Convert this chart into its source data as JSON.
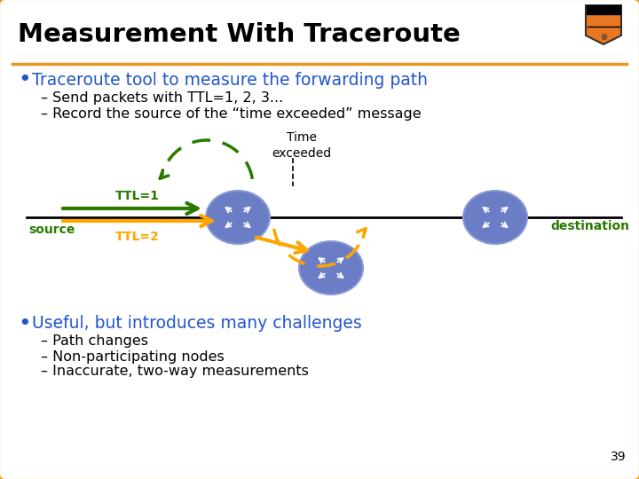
{
  "title": "Measurement With Traceroute",
  "bg_color": "#FFFFFF",
  "border_color": "#E8971E",
  "title_color": "#000000",
  "title_bg": "#FFFFFF",
  "bullet1_color": "#2255CC",
  "bullet1_text": "Traceroute tool to measure the forwarding path",
  "sub1a": "– Send packets with TTL=1, 2, 3...",
  "sub1b": "– Record the source of the “time exceeded” message",
  "bullet2_color": "#2255CC",
  "bullet2_text": "Useful, but introduces many challenges",
  "sub2a": "– Path changes",
  "sub2b": "– Non-participating nodes",
  "sub2c": "– Inaccurate, two-way measurements",
  "green_color": "#2A7A00",
  "orange_color": "#FFA500",
  "router_fill": "#6B7EC5",
  "router_fill2": "#5A6DB5",
  "router_edge": "#8898D8",
  "ttl1_label": "TTL=1",
  "ttl2_label": "TTL=2",
  "time_exceeded_label": "Time\nexceeded",
  "source_label": "source",
  "destination_label": "destination",
  "slide_number": "39",
  "sub_text_color": "#000000"
}
